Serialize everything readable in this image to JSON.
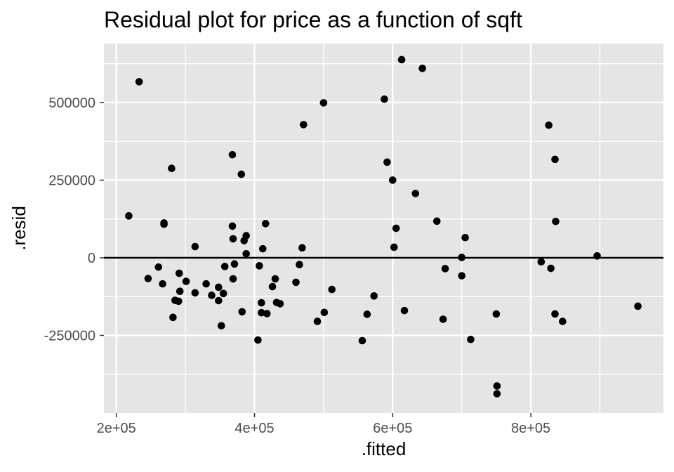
{
  "chart_data": {
    "type": "scatter",
    "title": "Residual plot for price as a function of sqft",
    "xlabel": ".fitted",
    "ylabel": ".resid",
    "xlim": [
      182000,
      992000
    ],
    "ylim": [
      -500000,
      690000
    ],
    "x_ticks": [
      {
        "value": 200000,
        "label": "2e+05"
      },
      {
        "value": 400000,
        "label": "4e+05"
      },
      {
        "value": 600000,
        "label": "6e+05"
      },
      {
        "value": 800000,
        "label": "8e+05"
      }
    ],
    "y_ticks": [
      {
        "value": -250000,
        "label": "-250000"
      },
      {
        "value": 0,
        "label": "0"
      },
      {
        "value": 250000,
        "label": "250000"
      },
      {
        "value": 500000,
        "label": "500000"
      }
    ],
    "reference_line": 0,
    "grid": true,
    "colors": {
      "panel": "#e5e5e5",
      "grid": "#ffffff",
      "point": "#000000",
      "refline": "#000000"
    },
    "points": [
      {
        "x": 218000,
        "y": 135000
      },
      {
        "x": 233000,
        "y": 567000
      },
      {
        "x": 246000,
        "y": -67000
      },
      {
        "x": 261000,
        "y": -30000
      },
      {
        "x": 267000,
        "y": -84000
      },
      {
        "x": 269000,
        "y": 108000
      },
      {
        "x": 269000,
        "y": 112000
      },
      {
        "x": 280000,
        "y": 288000
      },
      {
        "x": 282000,
        "y": -192000
      },
      {
        "x": 285000,
        "y": -137000
      },
      {
        "x": 290000,
        "y": -140000
      },
      {
        "x": 291000,
        "y": -50000
      },
      {
        "x": 292000,
        "y": -108000
      },
      {
        "x": 301000,
        "y": -76000
      },
      {
        "x": 314000,
        "y": 36000
      },
      {
        "x": 314000,
        "y": -113000
      },
      {
        "x": 330000,
        "y": -84000
      },
      {
        "x": 338000,
        "y": -121000
      },
      {
        "x": 348000,
        "y": -95000
      },
      {
        "x": 348000,
        "y": -138000
      },
      {
        "x": 352000,
        "y": -219000
      },
      {
        "x": 355000,
        "y": -115000
      },
      {
        "x": 357000,
        "y": -28000
      },
      {
        "x": 368000,
        "y": 332000
      },
      {
        "x": 368000,
        "y": 102000
      },
      {
        "x": 369000,
        "y": 61000
      },
      {
        "x": 369000,
        "y": -68000
      },
      {
        "x": 371000,
        "y": -20000
      },
      {
        "x": 381000,
        "y": 269000
      },
      {
        "x": 382000,
        "y": -174000
      },
      {
        "x": 385000,
        "y": 55000
      },
      {
        "x": 388000,
        "y": 71000
      },
      {
        "x": 388000,
        "y": 13000
      },
      {
        "x": 405000,
        "y": -265000
      },
      {
        "x": 407000,
        "y": -26000
      },
      {
        "x": 410000,
        "y": -145000
      },
      {
        "x": 410000,
        "y": -177000
      },
      {
        "x": 412000,
        "y": 29000
      },
      {
        "x": 416000,
        "y": 110000
      },
      {
        "x": 418000,
        "y": -180000
      },
      {
        "x": 426000,
        "y": -93000
      },
      {
        "x": 430000,
        "y": -68000
      },
      {
        "x": 432000,
        "y": -144000
      },
      {
        "x": 437000,
        "y": -148000
      },
      {
        "x": 460000,
        "y": -79000
      },
      {
        "x": 465000,
        "y": -22000
      },
      {
        "x": 469000,
        "y": 32000
      },
      {
        "x": 471000,
        "y": 429000
      },
      {
        "x": 491000,
        "y": -205000
      },
      {
        "x": 500000,
        "y": 499000
      },
      {
        "x": 501000,
        "y": -176000
      },
      {
        "x": 512000,
        "y": -102000
      },
      {
        "x": 556000,
        "y": -267000
      },
      {
        "x": 563000,
        "y": -182000
      },
      {
        "x": 573000,
        "y": -123000
      },
      {
        "x": 588000,
        "y": 511000
      },
      {
        "x": 592000,
        "y": 308000
      },
      {
        "x": 600000,
        "y": 250000
      },
      {
        "x": 602000,
        "y": 34000
      },
      {
        "x": 605000,
        "y": 95000
      },
      {
        "x": 613000,
        "y": 638000
      },
      {
        "x": 617000,
        "y": -170000
      },
      {
        "x": 633000,
        "y": 207000
      },
      {
        "x": 643000,
        "y": 610000
      },
      {
        "x": 664000,
        "y": 118000
      },
      {
        "x": 673000,
        "y": -198000
      },
      {
        "x": 676000,
        "y": -35000
      },
      {
        "x": 700000,
        "y": -58000
      },
      {
        "x": 700000,
        "y": 1000
      },
      {
        "x": 705000,
        "y": 65000
      },
      {
        "x": 713000,
        "y": -263000
      },
      {
        "x": 750000,
        "y": -181000
      },
      {
        "x": 751000,
        "y": -413000
      },
      {
        "x": 751000,
        "y": -438000
      },
      {
        "x": 815000,
        "y": -13000
      },
      {
        "x": 826000,
        "y": 427000
      },
      {
        "x": 829000,
        "y": -34000
      },
      {
        "x": 835000,
        "y": 317000
      },
      {
        "x": 836000,
        "y": 117000
      },
      {
        "x": 835000,
        "y": -181000
      },
      {
        "x": 846000,
        "y": -205000
      },
      {
        "x": 896000,
        "y": 6000
      },
      {
        "x": 955000,
        "y": -156000
      }
    ]
  }
}
